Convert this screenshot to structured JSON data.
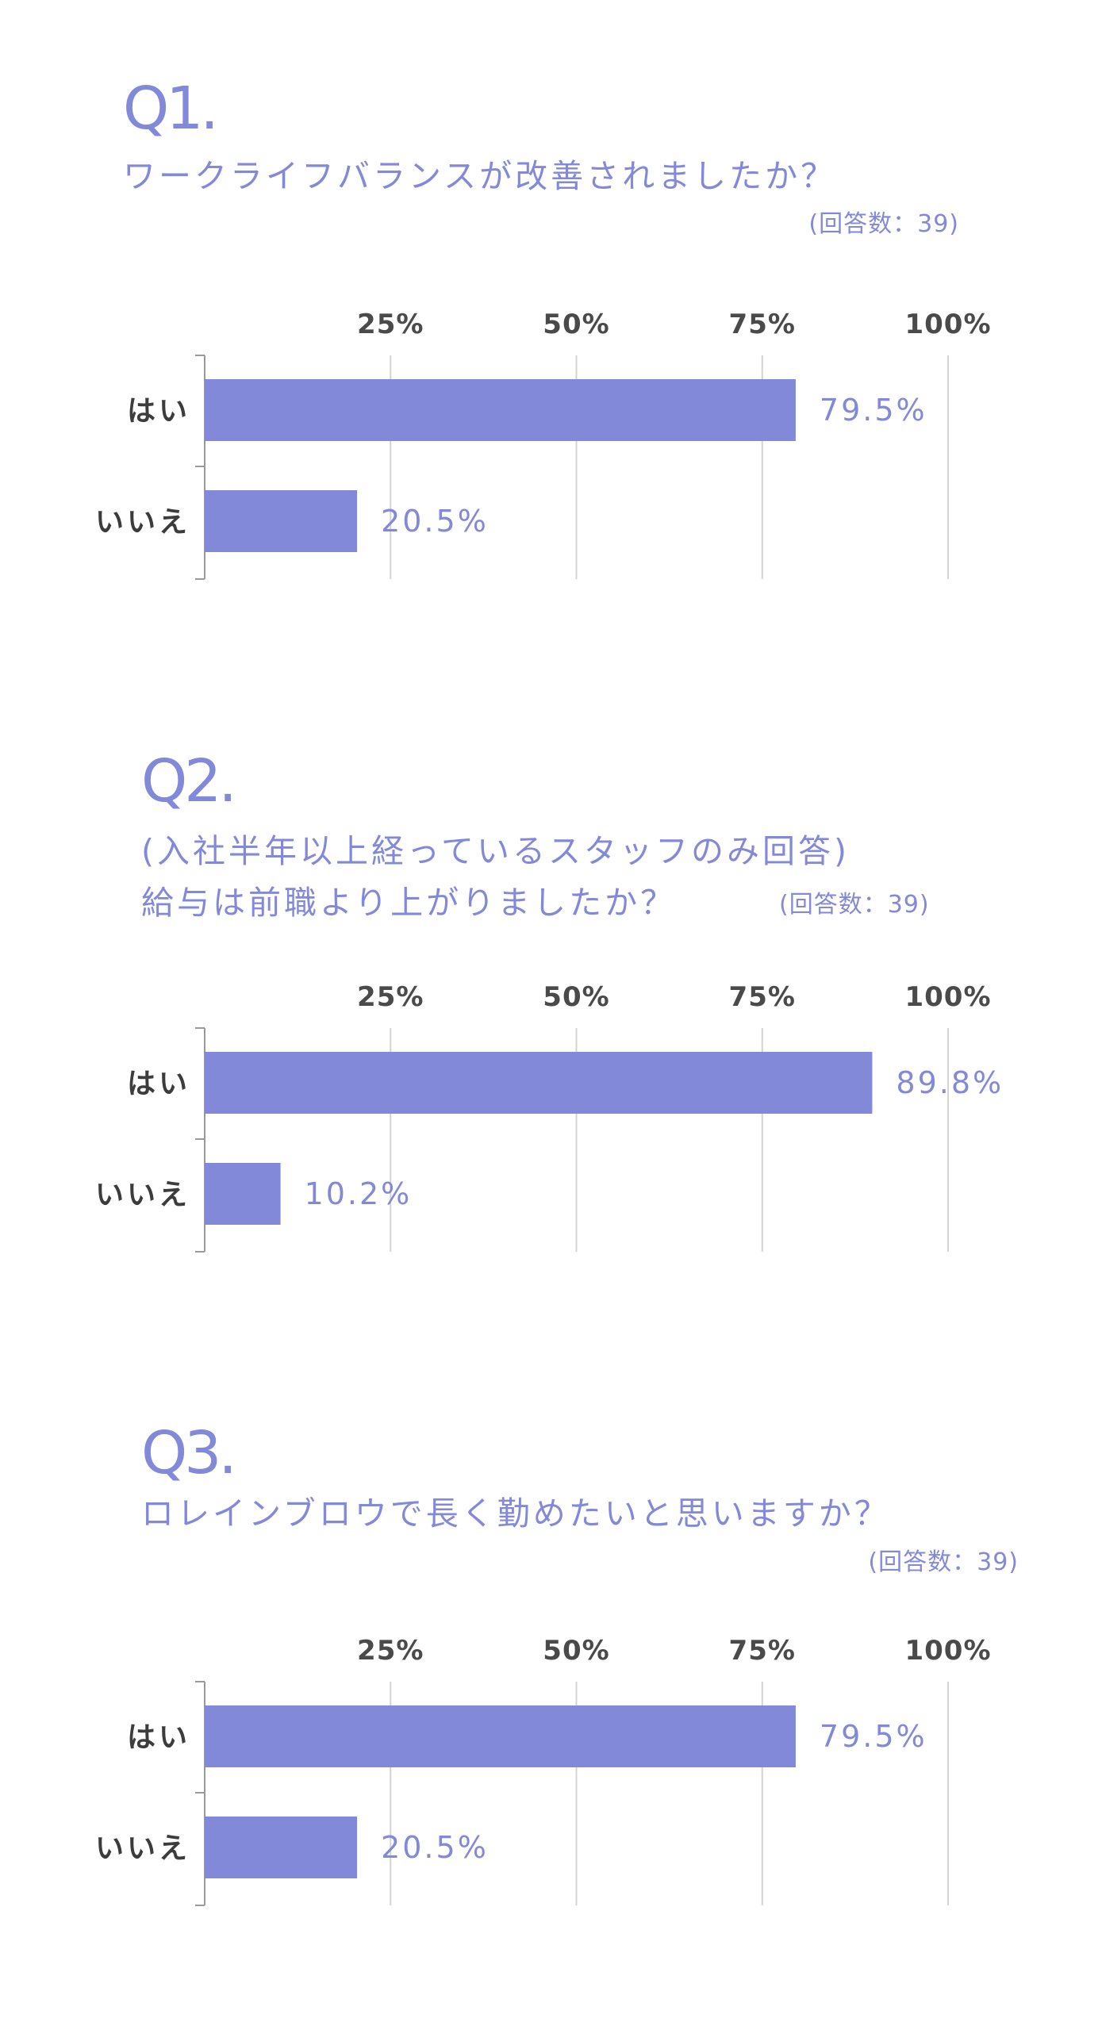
{
  "colors": {
    "accent": "#8389d9",
    "grid": "#d4d4d4",
    "axis": "#9a9a9a",
    "category_text": "#3c3c3c",
    "tick_text": "#4a4a4a"
  },
  "questions": [
    {
      "heading": "Q1.",
      "lines": [
        "ワークライフバランスが改善されましたか？"
      ],
      "count": "(回答数：39)"
    },
    {
      "heading": "Q2.",
      "lines": [
        "(入社半年以上経っているスタッフのみ回答)",
        "給与は前職より上がりましたか？"
      ],
      "count": "(回答数：39)"
    },
    {
      "heading": "Q3.",
      "lines": [
        "ロレインブロウで長く勤めたいと思いますか？"
      ],
      "count": "(回答数：39)"
    }
  ],
  "chart_data": [
    {
      "type": "bar",
      "orientation": "horizontal",
      "categories": [
        "はい",
        "いいえ"
      ],
      "values": [
        79.5,
        20.5
      ],
      "value_labels": [
        "79.5%",
        "20.5%"
      ],
      "x_ticks": [
        "25%",
        "50%",
        "75%",
        "100%"
      ],
      "xlim": [
        0,
        100
      ],
      "grid": true
    },
    {
      "type": "bar",
      "orientation": "horizontal",
      "categories": [
        "はい",
        "いいえ"
      ],
      "values": [
        89.8,
        10.2
      ],
      "value_labels": [
        "89.8%",
        "10.2%"
      ],
      "x_ticks": [
        "25%",
        "50%",
        "75%",
        "100%"
      ],
      "xlim": [
        0,
        100
      ],
      "grid": true
    },
    {
      "type": "bar",
      "orientation": "horizontal",
      "categories": [
        "はい",
        "いいえ"
      ],
      "values": [
        79.5,
        20.5
      ],
      "value_labels": [
        "79.5%",
        "20.5%"
      ],
      "x_ticks": [
        "25%",
        "50%",
        "75%",
        "100%"
      ],
      "xlim": [
        0,
        100
      ],
      "grid": true
    }
  ]
}
